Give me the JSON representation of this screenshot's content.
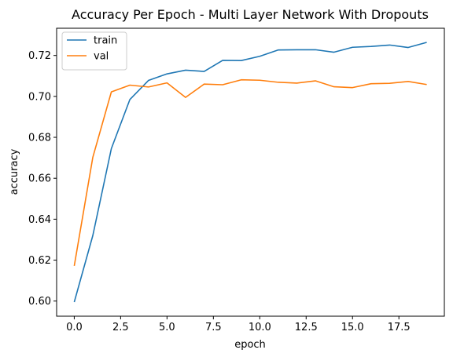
{
  "chart_data": {
    "type": "line",
    "title": "Accuracy Per Epoch - Multi Layer Network With Dropouts",
    "xlabel": "epoch",
    "ylabel": "accuracy",
    "xlim": [
      -0.95,
      19.95
    ],
    "ylim": [
      0.5926,
      0.7333
    ],
    "xticks": [
      0.0,
      2.5,
      5.0,
      7.5,
      10.0,
      12.5,
      15.0,
      17.5
    ],
    "xtick_labels": [
      "0.0",
      "2.5",
      "5.0",
      "7.5",
      "10.0",
      "12.5",
      "15.0",
      "17.5"
    ],
    "yticks": [
      0.6,
      0.62,
      0.64,
      0.66,
      0.68,
      0.7,
      0.72
    ],
    "ytick_labels": [
      "0.60",
      "0.62",
      "0.64",
      "0.66",
      "0.68",
      "0.70",
      "0.72"
    ],
    "grid": false,
    "legend_position": "top-left",
    "x": [
      0,
      1,
      2,
      3,
      4,
      5,
      6,
      7,
      8,
      9,
      10,
      11,
      12,
      13,
      14,
      15,
      16,
      17,
      18,
      19
    ],
    "series": [
      {
        "name": "train",
        "color": "#1f77b4",
        "values": [
          0.5995,
          0.632,
          0.6745,
          0.6985,
          0.7078,
          0.711,
          0.7128,
          0.7122,
          0.7176,
          0.7175,
          0.7196,
          0.7227,
          0.7228,
          0.7228,
          0.7216,
          0.724,
          0.7244,
          0.7251,
          0.7239,
          0.7264
        ]
      },
      {
        "name": "val",
        "color": "#ff7f0e",
        "values": [
          0.6172,
          0.6702,
          0.7022,
          0.7055,
          0.7046,
          0.7066,
          0.6995,
          0.706,
          0.7057,
          0.7081,
          0.7079,
          0.7069,
          0.7065,
          0.7076,
          0.7047,
          0.7043,
          0.7062,
          0.7064,
          0.7073,
          0.7058
        ]
      }
    ]
  }
}
